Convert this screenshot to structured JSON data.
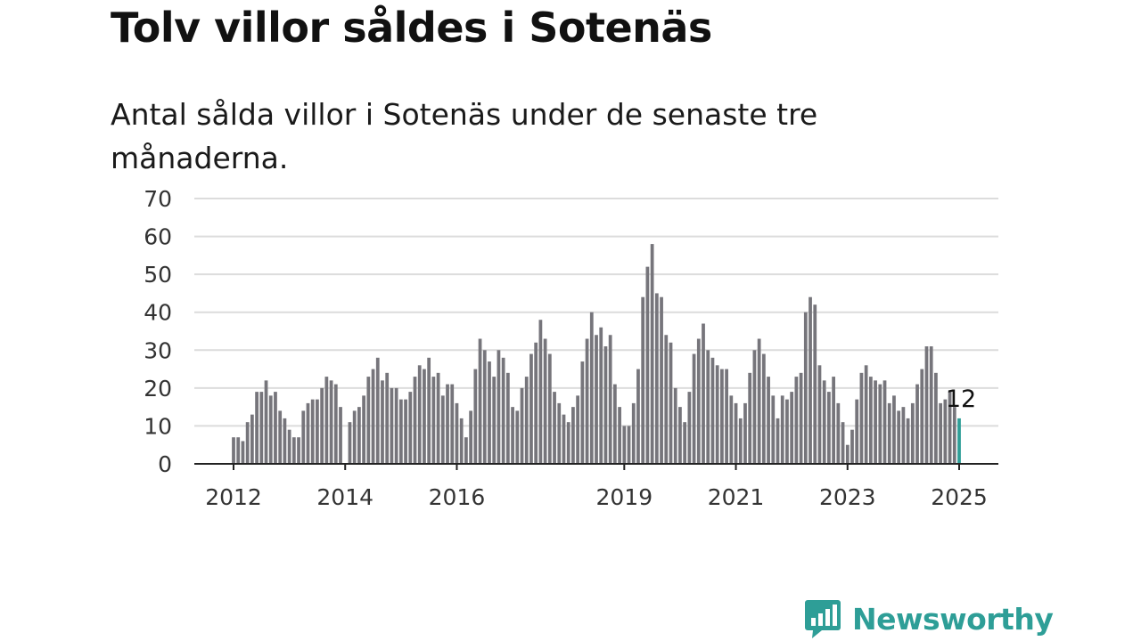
{
  "title": "Tolv villor såldes i Sotenäs",
  "subtitle": "Antal sålda villor i Sotenäs under de senaste tre månaderna.",
  "brand": {
    "name": "Newsworthy",
    "icon": "newsworthy-logo-icon",
    "color": "#2e9e97"
  },
  "chart_data": {
    "type": "bar",
    "title": "Tolv villor såldes i Sotenäs",
    "subtitle": "Antal sålda villor i Sotenäs under de senaste tre månaderna.",
    "xlabel": "",
    "ylabel": "",
    "ylim": [
      0,
      70
    ],
    "yticks": [
      0,
      10,
      20,
      30,
      40,
      50,
      60,
      70
    ],
    "xticks": [
      "2012",
      "2014",
      "2016",
      "2019",
      "2021",
      "2023",
      "2025"
    ],
    "grid": true,
    "legend": "none",
    "bar_color": "#76757b",
    "highlight_color": "#2e9e97",
    "x_start": "2012-01",
    "x_end": "2025-01",
    "annotation": {
      "x": "2025-01",
      "text": "12"
    },
    "x": [
      "2012-01",
      "2012-02",
      "2012-03",
      "2012-04",
      "2012-05",
      "2012-06",
      "2012-07",
      "2012-08",
      "2012-09",
      "2012-10",
      "2012-11",
      "2012-12",
      "2013-01",
      "2013-02",
      "2013-03",
      "2013-04",
      "2013-05",
      "2013-06",
      "2013-07",
      "2013-08",
      "2013-09",
      "2013-10",
      "2013-11",
      "2013-12",
      "2014-01",
      "2014-02",
      "2014-03",
      "2014-04",
      "2014-05",
      "2014-06",
      "2014-07",
      "2014-08",
      "2014-09",
      "2014-10",
      "2014-11",
      "2014-12",
      "2015-01",
      "2015-02",
      "2015-03",
      "2015-04",
      "2015-05",
      "2015-06",
      "2015-07",
      "2015-08",
      "2015-09",
      "2015-10",
      "2015-11",
      "2015-12",
      "2016-01",
      "2016-02",
      "2016-03",
      "2016-04",
      "2016-05",
      "2016-06",
      "2016-07",
      "2016-08",
      "2016-09",
      "2016-10",
      "2016-11",
      "2016-12",
      "2017-01",
      "2017-02",
      "2017-03",
      "2017-04",
      "2017-05",
      "2017-06",
      "2017-07",
      "2017-08",
      "2017-09",
      "2017-10",
      "2017-11",
      "2017-12",
      "2018-01",
      "2018-02",
      "2018-03",
      "2018-04",
      "2018-05",
      "2018-06",
      "2018-07",
      "2018-08",
      "2018-09",
      "2018-10",
      "2018-11",
      "2018-12",
      "2019-01",
      "2019-02",
      "2019-03",
      "2019-04",
      "2019-05",
      "2019-06",
      "2019-07",
      "2019-08",
      "2019-09",
      "2019-10",
      "2019-11",
      "2019-12",
      "2020-01",
      "2020-02",
      "2020-03",
      "2020-04",
      "2020-05",
      "2020-06",
      "2020-07",
      "2020-08",
      "2020-09",
      "2020-10",
      "2020-11",
      "2020-12",
      "2021-01",
      "2021-02",
      "2021-03",
      "2021-04",
      "2021-05",
      "2021-06",
      "2021-07",
      "2021-08",
      "2021-09",
      "2021-10",
      "2021-11",
      "2021-12",
      "2022-01",
      "2022-02",
      "2022-03",
      "2022-04",
      "2022-05",
      "2022-06",
      "2022-07",
      "2022-08",
      "2022-09",
      "2022-10",
      "2022-11",
      "2022-12",
      "2023-01",
      "2023-02",
      "2023-03",
      "2023-04",
      "2023-05",
      "2023-06",
      "2023-07",
      "2023-08",
      "2023-09",
      "2023-10",
      "2023-11",
      "2023-12",
      "2024-01",
      "2024-02",
      "2024-03",
      "2024-04",
      "2024-05",
      "2024-06",
      "2024-07",
      "2024-08",
      "2024-09",
      "2024-10",
      "2024-11",
      "2024-12",
      "2025-01"
    ],
    "values": [
      7,
      7,
      6,
      11,
      13,
      19,
      19,
      22,
      18,
      19,
      14,
      12,
      9,
      7,
      7,
      14,
      16,
      17,
      17,
      20,
      23,
      22,
      21,
      15,
      0,
      11,
      14,
      15,
      18,
      23,
      25,
      28,
      22,
      24,
      20,
      20,
      17,
      17,
      19,
      23,
      26,
      25,
      28,
      23,
      24,
      18,
      21,
      21,
      16,
      12,
      7,
      14,
      25,
      33,
      30,
      27,
      23,
      30,
      28,
      24,
      15,
      14,
      20,
      23,
      29,
      32,
      38,
      33,
      29,
      19,
      16,
      13,
      11,
      15,
      18,
      27,
      33,
      40,
      34,
      36,
      31,
      34,
      21,
      15,
      10,
      10,
      16,
      25,
      44,
      52,
      58,
      45,
      44,
      34,
      32,
      20,
      15,
      11,
      19,
      29,
      33,
      37,
      30,
      28,
      26,
      25,
      25,
      18,
      16,
      12,
      16,
      24,
      30,
      33,
      29,
      23,
      18,
      12,
      18,
      17,
      19,
      23,
      24,
      40,
      44,
      42,
      26,
      22,
      19,
      23,
      16,
      11,
      5,
      9,
      17,
      24,
      26,
      23,
      22,
      21,
      22,
      16,
      18,
      14,
      15,
      12,
      16,
      21,
      25,
      31,
      31,
      24,
      16,
      17,
      19,
      15,
      12
    ]
  }
}
